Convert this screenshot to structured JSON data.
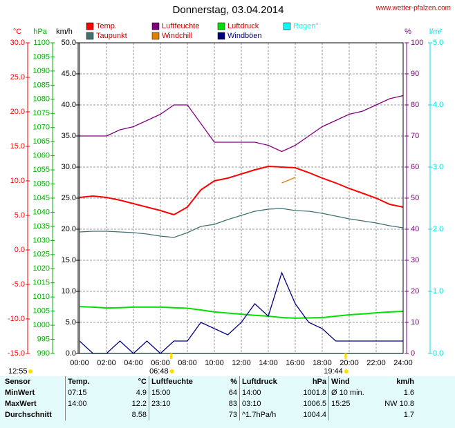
{
  "chart_data": {
    "type": "line",
    "title": "Donnerstag, 03.04.2014",
    "site": "www.wetter-pfalzen.com",
    "x": [
      0,
      1,
      2,
      3,
      4,
      5,
      6,
      7,
      8,
      9,
      10,
      11,
      12,
      13,
      14,
      15,
      16,
      17,
      18,
      19,
      20,
      21,
      22,
      23,
      24
    ],
    "xlim": [
      0,
      24
    ],
    "xticks": [
      {
        "value": 0,
        "label": "00:00"
      },
      {
        "value": 2,
        "label": "02:00"
      },
      {
        "value": 4,
        "label": "04:00"
      },
      {
        "value": 6,
        "label": "06:00"
      },
      {
        "value": 8,
        "label": "08:00"
      },
      {
        "value": 10,
        "label": "10:00"
      },
      {
        "value": 12,
        "label": "12:00"
      },
      {
        "value": 14,
        "label": "14:00"
      },
      {
        "value": 16,
        "label": "16:00"
      },
      {
        "value": 18,
        "label": "18:00"
      },
      {
        "value": 20,
        "label": "20:00"
      },
      {
        "value": 22,
        "label": "22:00"
      },
      {
        "value": 24,
        "label": "24:00"
      }
    ],
    "grid": true,
    "axes": [
      {
        "label": "°C",
        "color": "#ff0000",
        "lim": [
          -15,
          30
        ],
        "ticks": [
          {
            "value": 30,
            "label": "30.0"
          },
          {
            "value": 25,
            "label": "25.0"
          },
          {
            "value": 20,
            "label": "20.0"
          },
          {
            "value": 15,
            "label": "15.0"
          },
          {
            "value": 10,
            "label": "10.0"
          },
          {
            "value": 5,
            "label": "5.0"
          },
          {
            "value": 0,
            "label": "0.0"
          },
          {
            "value": -5,
            "label": "-5.0"
          },
          {
            "value": -10,
            "label": "-10.0"
          },
          {
            "value": -15,
            "label": "-15.0"
          }
        ]
      },
      {
        "label": "hPa",
        "color": "#00b000",
        "lim": [
          990,
          1100
        ],
        "ticks": [
          1100,
          1095,
          1090,
          1085,
          1080,
          1075,
          1070,
          1065,
          1060,
          1055,
          1050,
          1045,
          1040,
          1035,
          1030,
          1025,
          1020,
          1015,
          1010,
          1005,
          1000,
          995,
          990
        ]
      },
      {
        "label": "km/h",
        "color": "#000000",
        "lim": [
          0,
          50
        ],
        "ticks": [
          {
            "value": 50,
            "label": "50.0"
          },
          {
            "value": 45,
            "label": "45.0"
          },
          {
            "value": 40,
            "label": "40.0"
          },
          {
            "value": 35,
            "label": "35.0"
          },
          {
            "value": 30,
            "label": "30.0"
          },
          {
            "value": 25,
            "label": "25.0"
          },
          {
            "value": 20,
            "label": "20.0"
          },
          {
            "value": 15,
            "label": "15.0"
          },
          {
            "value": 10,
            "label": "10.0"
          },
          {
            "value": 5,
            "label": "5.0"
          },
          {
            "value": 0,
            "label": "0.0"
          }
        ]
      },
      {
        "label": "%",
        "color": "#800080",
        "lim": [
          0,
          100
        ],
        "ticks": [
          100,
          90,
          80,
          70,
          60,
          50,
          40,
          30,
          20,
          10,
          0
        ]
      },
      {
        "label": "l/m²",
        "color": "#00e0e0",
        "lim": [
          0,
          5
        ],
        "ticks": [
          {
            "value": 5,
            "label": "5.0"
          },
          {
            "value": 4,
            "label": "4.0"
          },
          {
            "value": 3,
            "label": "3.0"
          },
          {
            "value": 2,
            "label": "2.0"
          },
          {
            "value": 1,
            "label": "1.0"
          },
          {
            "value": 0,
            "label": "0.0"
          }
        ]
      }
    ],
    "series": [
      {
        "name": "Temp.",
        "color": "#ff0000",
        "axis": "°C",
        "values": [
          7.6,
          7.8,
          7.6,
          7.2,
          6.7,
          6.2,
          5.7,
          5.1,
          6.2,
          8.7,
          10.0,
          10.4,
          11.0,
          11.6,
          12.1,
          12.0,
          11.9,
          11.2,
          10.4,
          9.7,
          8.9,
          8.2,
          7.5,
          6.6,
          6.2
        ]
      },
      {
        "name": "Luftfeuchte",
        "color": "#800080",
        "axis": "%",
        "values": [
          70,
          70,
          70,
          72,
          73,
          75,
          77,
          80,
          80,
          74,
          68,
          68,
          68,
          68,
          67,
          65,
          67,
          70,
          73,
          75,
          77,
          78,
          80,
          82,
          83
        ]
      },
      {
        "name": "Luftdruck",
        "color": "#00e000",
        "axis": "hPa",
        "values": [
          1006.6,
          1006.4,
          1006.1,
          1006.2,
          1006.4,
          1006.4,
          1006.4,
          1006.2,
          1006.0,
          1005.4,
          1004.7,
          1004.3,
          1003.9,
          1003.5,
          1003.2,
          1002.7,
          1002.5,
          1002.6,
          1002.7,
          1003.2,
          1003.7,
          1004.0,
          1004.4,
          1004.7,
          1004.9
        ]
      },
      {
        "name": "Regen°",
        "color": "#00ffff",
        "axis": "l/m²",
        "values": [
          0,
          0,
          0,
          0,
          0,
          0,
          0,
          0,
          0,
          0,
          0,
          0,
          0,
          0,
          0,
          0,
          0,
          0,
          0,
          0,
          0,
          0,
          0,
          0,
          0
        ]
      },
      {
        "name": "Taupunkt",
        "color": "#407070",
        "axis": "°C",
        "values": [
          2.6,
          2.7,
          2.7,
          2.6,
          2.5,
          2.3,
          2.0,
          1.8,
          2.5,
          3.4,
          3.7,
          4.4,
          5.0,
          5.6,
          5.9,
          6.0,
          5.7,
          5.6,
          5.3,
          4.9,
          4.5,
          4.2,
          3.9,
          3.5,
          3.2
        ]
      },
      {
        "name": "Windchill",
        "color": "#e08000",
        "axis": "°C",
        "values": [
          null,
          null,
          null,
          null,
          null,
          null,
          null,
          null,
          null,
          null,
          null,
          null,
          null,
          null,
          null,
          9.7,
          10.5,
          null,
          null,
          null,
          null,
          null,
          null,
          null,
          null
        ]
      },
      {
        "name": "Windböen",
        "color": "#000080",
        "axis": "km/h",
        "values": [
          2,
          0,
          0,
          2,
          0,
          2,
          0,
          2,
          2,
          5,
          4,
          3,
          5,
          8,
          6,
          13,
          8,
          5,
          4,
          2,
          2,
          2,
          2,
          2,
          2
        ]
      }
    ],
    "sun": {
      "daylength": "12:55",
      "sunrise": {
        "value": 6.8,
        "label": "06:48"
      },
      "sunset": {
        "value": 19.733,
        "label": "19:44"
      }
    }
  },
  "table": {
    "header": [
      "Sensor",
      "Temp.",
      "°C",
      "Luftfeuchte",
      "%",
      "Luftdruck",
      "hPa",
      "Wind",
      "km/h"
    ],
    "rows": [
      [
        "MinWert",
        "07:15",
        "4.9",
        "15:00",
        "64",
        "14:00",
        "1001.8",
        "Ø 10 min.",
        "1.6"
      ],
      [
        "MaxWert",
        "14:00",
        "12.2",
        "23:10",
        "83",
        "03:10",
        "1006.5",
        "15:25",
        "NW 10.8"
      ],
      [
        "Durchschnitt",
        null,
        "8.58",
        null,
        "73",
        "^1.7hPa/h",
        "1004.4",
        null,
        "1.7"
      ]
    ]
  }
}
